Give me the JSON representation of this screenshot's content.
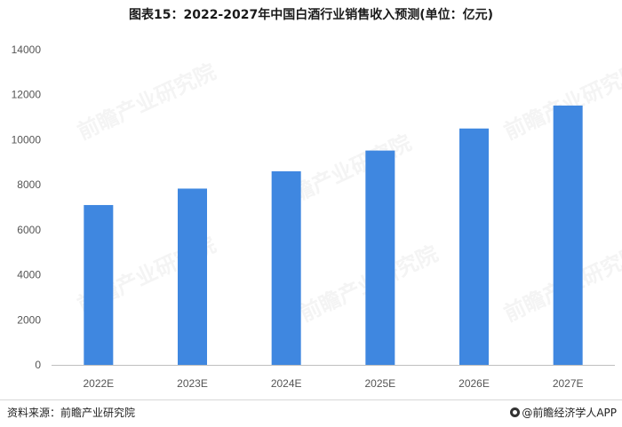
{
  "page": {
    "title": "图表15：2022-2027年中国白酒行业销售收入预测(单位：亿元)",
    "source": "资料来源：前瞻产业研究院",
    "credit": "@前瞻经济学人APP",
    "watermark": "前瞻产业研究院"
  },
  "colors": {
    "bar": "#3f87e0",
    "axis": "#bfbfbf",
    "text": "#555555"
  },
  "chart_data": {
    "type": "bar",
    "title": "图表15：2022-2027年中国白酒行业销售收入预测(单位：亿元)",
    "xlabel": "",
    "ylabel": "",
    "categories": [
      "2022E",
      "2023E",
      "2024E",
      "2025E",
      "2026E",
      "2027E"
    ],
    "values": [
      7100,
      7830,
      8600,
      9520,
      10500,
      11520
    ],
    "ylim": [
      0,
      14000
    ],
    "yticks": [
      0,
      2000,
      4000,
      6000,
      8000,
      10000,
      12000,
      14000
    ],
    "grid": false,
    "legend": "none"
  }
}
